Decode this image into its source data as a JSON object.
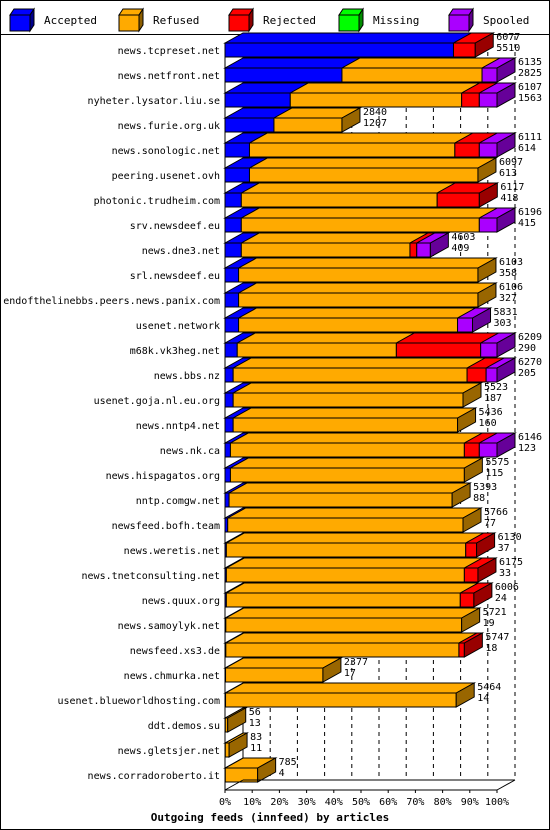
{
  "chart_data": {
    "type": "bar",
    "orientation": "horizontal",
    "stacked": true,
    "xlabel": "Outgoing feeds (innfeed) by articles",
    "x_unit": "percent of offered articles",
    "xlim": [
      0,
      100
    ],
    "x_ticks": [
      "0%",
      "10%",
      "20%",
      "30%",
      "40%",
      "50%",
      "60%",
      "70%",
      "80%",
      "90%",
      "100%"
    ],
    "grid": "vertical dashed",
    "legend_placement": "top",
    "legend": [
      {
        "key": "accepted",
        "label": "Accepted",
        "color": "#0000ff"
      },
      {
        "key": "refused",
        "label": "Refused",
        "color": "#ffaa00"
      },
      {
        "key": "rejected",
        "label": "Rejected",
        "color": "#ff0000"
      },
      {
        "key": "missing",
        "label": "Missing",
        "color": "#00ff00"
      },
      {
        "key": "spooled",
        "label": "Spooled",
        "color": "#aa00ff"
      }
    ],
    "rows": [
      {
        "name": "news.tcpreset.net",
        "offered": "6077",
        "accepted_count": "5510",
        "accepted": 84.0,
        "refused": 0,
        "rejected": 8.0,
        "missing": 0,
        "spooled": 0
      },
      {
        "name": "news.netfront.net",
        "offered": "6135",
        "accepted_count": "2825",
        "accepted": 43.0,
        "refused": 51.5,
        "rejected": 0,
        "missing": 0,
        "spooled": 5.5
      },
      {
        "name": "nyheter.lysator.liu.se",
        "offered": "6107",
        "accepted_count": "1563",
        "accepted": 24.0,
        "refused": 63.0,
        "rejected": 6.5,
        "missing": 0,
        "spooled": 6.5
      },
      {
        "name": "news.furie.org.uk",
        "offered": "2840",
        "accepted_count": "1207",
        "accepted": 18.0,
        "refused": 25.0,
        "rejected": 0,
        "missing": 0,
        "spooled": 0
      },
      {
        "name": "news.sonologic.net",
        "offered": "6111",
        "accepted_count": "614",
        "accepted": 9.0,
        "refused": 75.5,
        "rejected": 9.0,
        "missing": 0,
        "spooled": 6.5
      },
      {
        "name": "peering.usenet.ovh",
        "offered": "6097",
        "accepted_count": "613",
        "accepted": 9.0,
        "refused": 84.0,
        "rejected": 0,
        "missing": 0,
        "spooled": 0
      },
      {
        "name": "photonic.trudheim.com",
        "offered": "6117",
        "accepted_count": "418",
        "accepted": 6.0,
        "refused": 72.0,
        "rejected": 15.5,
        "missing": 0,
        "spooled": 0
      },
      {
        "name": "srv.newsdeef.eu",
        "offered": "6196",
        "accepted_count": "415",
        "accepted": 6.0,
        "refused": 87.5,
        "rejected": 0,
        "missing": 0,
        "spooled": 6.5
      },
      {
        "name": "news.dne3.net",
        "offered": "4603",
        "accepted_count": "409",
        "accepted": 6.0,
        "refused": 62.0,
        "rejected": 2.5,
        "missing": 0,
        "spooled": 5.0
      },
      {
        "name": "srl.newsdeef.eu",
        "offered": "6103",
        "accepted_count": "358",
        "accepted": 5.0,
        "refused": 88.0,
        "rejected": 0,
        "missing": 0,
        "spooled": 0
      },
      {
        "name": "endofthelinebbs.peers.news.panix.com",
        "offered": "6106",
        "accepted_count": "327",
        "accepted": 5.0,
        "refused": 88.0,
        "rejected": 0,
        "missing": 0,
        "spooled": 0
      },
      {
        "name": "usenet.network",
        "offered": "5831",
        "accepted_count": "303",
        "accepted": 5.0,
        "refused": 80.5,
        "rejected": 0,
        "missing": 0,
        "spooled": 5.5
      },
      {
        "name": "m68k.vk3heg.net",
        "offered": "6209",
        "accepted_count": "290",
        "accepted": 4.5,
        "refused": 58.5,
        "rejected": 31.0,
        "missing": 0,
        "spooled": 6.0
      },
      {
        "name": "news.bbs.nz",
        "offered": "6270",
        "accepted_count": "205",
        "accepted": 3.0,
        "refused": 86.0,
        "rejected": 7.0,
        "missing": 0,
        "spooled": 4.0
      },
      {
        "name": "usenet.goja.nl.eu.org",
        "offered": "5523",
        "accepted_count": "187",
        "accepted": 3.0,
        "refused": 84.5,
        "rejected": 0,
        "missing": 0,
        "spooled": 0
      },
      {
        "name": "news.nntp4.net",
        "offered": "5436",
        "accepted_count": "160",
        "accepted": 3.0,
        "refused": 82.5,
        "rejected": 0,
        "missing": 0,
        "spooled": 0
      },
      {
        "name": "news.nk.ca",
        "offered": "6146",
        "accepted_count": "123",
        "accepted": 2.0,
        "refused": 86.0,
        "rejected": 5.5,
        "missing": 0,
        "spooled": 6.5
      },
      {
        "name": "news.hispagatos.org",
        "offered": "5575",
        "accepted_count": "115",
        "accepted": 2.0,
        "refused": 86.0,
        "rejected": 0,
        "missing": 0,
        "spooled": 0
      },
      {
        "name": "nntp.comgw.net",
        "offered": "5393",
        "accepted_count": "88",
        "accepted": 1.5,
        "refused": 82.0,
        "rejected": 0,
        "missing": 0,
        "spooled": 0
      },
      {
        "name": "newsfeed.bofh.team",
        "offered": "5766",
        "accepted_count": "77",
        "accepted": 1.0,
        "refused": 86.5,
        "rejected": 0,
        "missing": 0,
        "spooled": 0
      },
      {
        "name": "news.weretis.net",
        "offered": "6130",
        "accepted_count": "37",
        "accepted": 0.5,
        "refused": 88.0,
        "rejected": 4.0,
        "missing": 0,
        "spooled": 0
      },
      {
        "name": "news.tnetconsulting.net",
        "offered": "6175",
        "accepted_count": "33",
        "accepted": 0.5,
        "refused": 87.5,
        "rejected": 5.0,
        "missing": 0,
        "spooled": 0
      },
      {
        "name": "news.quux.org",
        "offered": "6006",
        "accepted_count": "24",
        "accepted": 0.5,
        "refused": 86.0,
        "rejected": 5.0,
        "missing": 0,
        "spooled": 0
      },
      {
        "name": "news.samoylyk.net",
        "offered": "5721",
        "accepted_count": "19",
        "accepted": 0.3,
        "refused": 86.7,
        "rejected": 0,
        "missing": 0,
        "spooled": 0
      },
      {
        "name": "newsfeed.xs3.de",
        "offered": "5747",
        "accepted_count": "18",
        "accepted": 0.3,
        "refused": 85.7,
        "rejected": 2.0,
        "missing": 0,
        "spooled": 0
      },
      {
        "name": "news.chmurka.net",
        "offered": "2377",
        "accepted_count": "17",
        "accepted": 0.2,
        "refused": 35.8,
        "rejected": 0,
        "missing": 0,
        "spooled": 0
      },
      {
        "name": "usenet.blueworldhosting.com",
        "offered": "5464",
        "accepted_count": "14",
        "accepted": 0.2,
        "refused": 84.8,
        "rejected": 0,
        "missing": 0,
        "spooled": 0
      },
      {
        "name": "ddt.demos.su",
        "offered": "56",
        "accepted_count": "13",
        "accepted": 0.1,
        "refused": 0.9,
        "rejected": 0,
        "missing": 0,
        "spooled": 0
      },
      {
        "name": "news.gletsjer.net",
        "offered": "83",
        "accepted_count": "11",
        "accepted": 0.1,
        "refused": 1.4,
        "rejected": 0,
        "missing": 0,
        "spooled": 0
      },
      {
        "name": "news.corradoroberto.it",
        "offered": "785",
        "accepted_count": "4",
        "accepted": 0.1,
        "refused": 11.9,
        "rejected": 0,
        "missing": 0,
        "spooled": 0
      }
    ]
  }
}
